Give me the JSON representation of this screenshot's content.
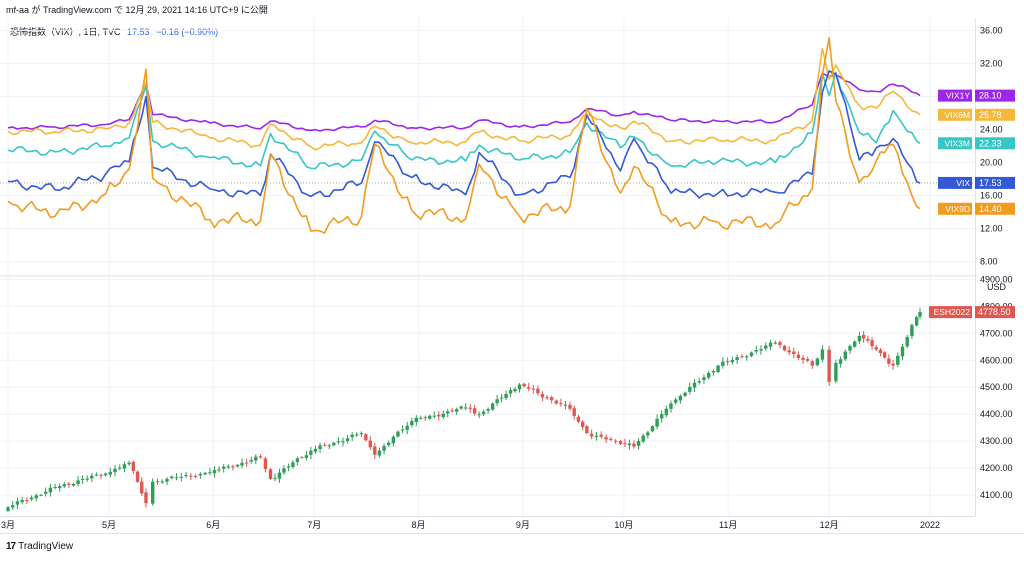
{
  "header": {
    "text": "mf-aa が TradingView.com で 12月 29, 2021 14:16 UTC+9 に公開"
  },
  "legend": {
    "name": "恐怖指数（VIX）, 1日, TVC",
    "last": "17.53",
    "change": "−0.16 (−0.90%)"
  },
  "logo": {
    "mark": "17",
    "text": "TradingView"
  },
  "colors": {
    "VIX1Y": "#9c27e8",
    "VIX6M": "#f5b83a",
    "VIX3M": "#36c6c6",
    "VIX": "#3459d6",
    "VIX9D": "#f29b1e",
    "up": "#2e9e58",
    "down": "#e0574f"
  },
  "chart_data": [
    {
      "type": "line",
      "title": "恐怖指数（VIX）",
      "y_ticks": [
        "36.00",
        "32.00",
        "28.00",
        "24.00",
        "20.00",
        "16.00",
        "12.00",
        "8.00"
      ],
      "ylim": [
        6.5,
        37.5
      ],
      "x_ticks": [
        "3月",
        "5月",
        "6月",
        "7月",
        "8月",
        "9月",
        "10月",
        "11月",
        "12月",
        "2022"
      ],
      "x": [
        "Apr 1",
        "Apr 15",
        "Apr 30",
        "May 7",
        "May 12",
        "May 14",
        "May 31",
        "Jun 15",
        "Jun 18",
        "Jun 30",
        "Jul 15",
        "Jul 19",
        "Jul 30",
        "Aug 15",
        "Aug 19",
        "Aug 31",
        "Sep 15",
        "Sep 20",
        "Sep 30",
        "Oct 4",
        "Oct 15",
        "Oct 29",
        "Nov 15",
        "Nov 26",
        "Nov 29",
        "Dec 1",
        "Dec 3",
        "Dec 10",
        "Dec 15",
        "Dec 20",
        "Dec 27",
        "Dec 28"
      ],
      "series": [
        {
          "name": "VIX1Y",
          "last": "28.10",
          "values": [
            24.2,
            24.3,
            24.6,
            25.2,
            29.6,
            25.8,
            24.8,
            24.1,
            25.0,
            23.9,
            24.3,
            25.1,
            24.2,
            24.2,
            25.1,
            24.3,
            24.9,
            26.5,
            25.7,
            26.2,
            25.1,
            25.0,
            24.9,
            27.0,
            30.8,
            30.4,
            30.6,
            28.8,
            28.6,
            29.5,
            28.4,
            28.1
          ]
        },
        {
          "name": "VIX6M",
          "last": "25.78",
          "values": [
            23.8,
            23.7,
            24.1,
            24.8,
            29.7,
            24.9,
            23.0,
            22.1,
            24.7,
            21.9,
            22.4,
            24.4,
            22.4,
            22.5,
            23.7,
            22.6,
            23.3,
            25.9,
            24.2,
            25.0,
            22.6,
            22.7,
            22.7,
            25.1,
            33.8,
            30.1,
            31.8,
            26.9,
            26.6,
            28.6,
            26.1,
            25.8
          ]
        },
        {
          "name": "VIX3M",
          "last": "22.33",
          "values": [
            21.5,
            21.3,
            22.0,
            23.0,
            29.3,
            22.6,
            20.6,
            19.6,
            23.5,
            19.3,
            20.3,
            23.8,
            20.3,
            20.2,
            22.1,
            20.3,
            21.2,
            24.8,
            21.8,
            23.1,
            19.6,
            20.1,
            20.0,
            23.6,
            30.8,
            28.1,
            30.9,
            23.6,
            22.4,
            26.3,
            22.6,
            22.3
          ]
        },
        {
          "name": "VIX",
          "last": "17.53",
          "values": [
            17.7,
            16.7,
            18.6,
            20.1,
            28.0,
            19.4,
            16.8,
            16.0,
            21.0,
            15.9,
            17.5,
            22.5,
            18.2,
            16.1,
            21.2,
            16.1,
            18.2,
            25.7,
            19.0,
            22.9,
            16.3,
            16.3,
            16.4,
            18.6,
            28.5,
            31.1,
            30.7,
            20.3,
            21.8,
            22.9,
            17.7,
            17.5
          ]
        },
        {
          "name": "VIX9D",
          "last": "14.40",
          "values": [
            15.3,
            13.5,
            16.2,
            19.2,
            31.3,
            18.1,
            13.1,
            12.9,
            20.9,
            11.7,
            13.4,
            22.2,
            14.2,
            13.2,
            19.8,
            13.5,
            14.7,
            26.5,
            16.3,
            19.5,
            12.8,
            12.8,
            12.6,
            16.9,
            30.6,
            35.1,
            27.4,
            17.6,
            20.2,
            22.2,
            14.7,
            14.4
          ]
        }
      ],
      "crosshair_value": 17.53
    },
    {
      "type": "candlestick",
      "title": "ESH2022",
      "unit": "USD",
      "last": "4778.50",
      "y_ticks": [
        "4900.00",
        "4800.00",
        "4700.00",
        "4600.00",
        "4500.00",
        "4400.00",
        "4300.00",
        "4200.00",
        "4100.00"
      ],
      "ylim": [
        4030,
        4905
      ],
      "x_ticks": [
        "3月",
        "5月",
        "6月",
        "7月",
        "8月",
        "9月",
        "10月",
        "11月",
        "12月",
        "2022"
      ],
      "x": [
        "Apr 1",
        "Apr 15",
        "Apr 30",
        "May 7",
        "May 12",
        "May 14",
        "May 31",
        "Jun 15",
        "Jun 18",
        "Jun 30",
        "Jul 15",
        "Jul 19",
        "Jul 30",
        "Aug 15",
        "Aug 19",
        "Aug 31",
        "Sep 15",
        "Sep 20",
        "Sep 30",
        "Oct 4",
        "Oct 15",
        "Oct 29",
        "Nov 15",
        "Nov 26",
        "Nov 29",
        "Dec 1",
        "Dec 3",
        "Dec 10",
        "Dec 15",
        "Dec 20",
        "Dec 27",
        "Dec 28"
      ],
      "close": [
        4055,
        4130,
        4180,
        4220,
        4070,
        4150,
        4185,
        4240,
        4160,
        4265,
        4330,
        4250,
        4375,
        4425,
        4400,
        4510,
        4420,
        4330,
        4290,
        4280,
        4440,
        4580,
        4665,
        4580,
        4640,
        4520,
        4590,
        4690,
        4640,
        4580,
        4760,
        4778.5
      ]
    }
  ]
}
